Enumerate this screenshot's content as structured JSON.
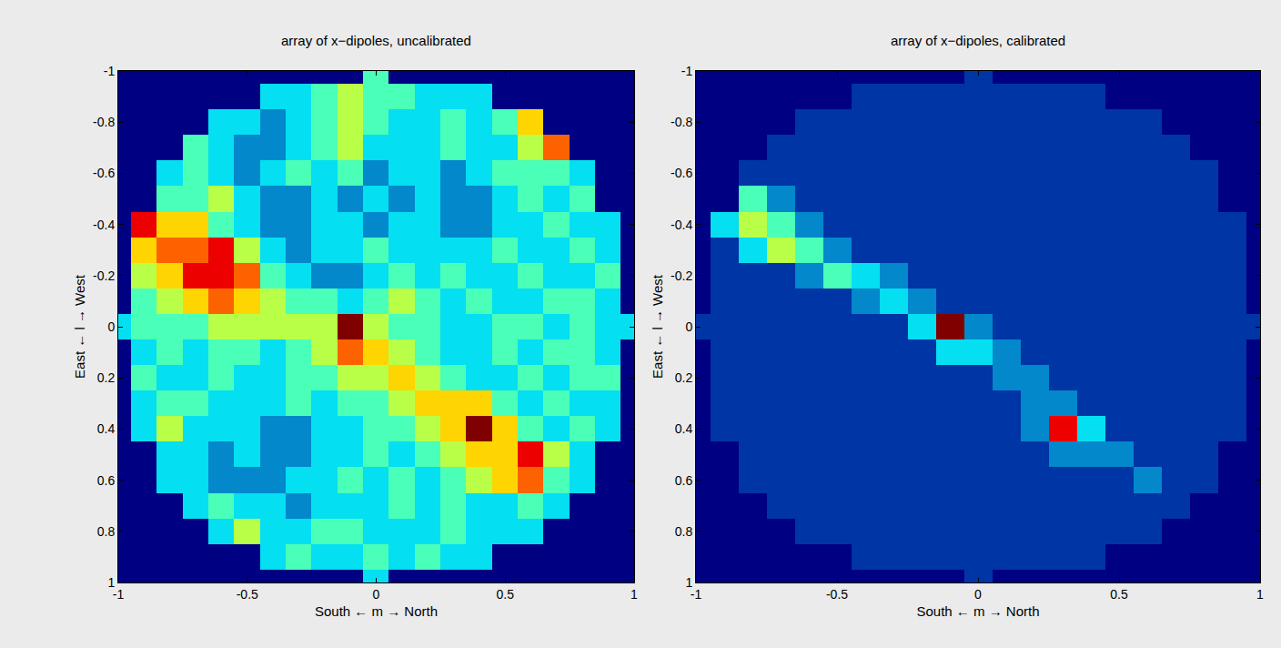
{
  "chart_data": [
    {
      "type": "heatmap",
      "title": "array of x−dipoles, uncalibrated",
      "x_label": "South ← m → North",
      "y_label": "East ← l → West",
      "xlim": [
        -1,
        1
      ],
      "ylim": [
        1,
        -1
      ],
      "xticks": [
        -1,
        -0.5,
        0,
        0.5,
        1
      ],
      "yticks": [
        -1,
        -0.8,
        -0.6,
        -0.4,
        -0.2,
        0,
        0.2,
        0.4,
        0.6,
        0.8,
        1
      ],
      "color_range": [
        0,
        9
      ],
      "x": [
        -1,
        -0.9,
        -0.8,
        -0.7,
        -0.6,
        -0.5,
        -0.4,
        -0.3,
        -0.2,
        -0.1,
        0,
        0.1,
        0.2,
        0.3,
        0.4,
        0.5,
        0.6,
        0.7,
        0.8,
        0.9,
        1
      ],
      "y": [
        -1,
        -0.9,
        -0.8,
        -0.7,
        -0.6,
        -0.5,
        -0.4,
        -0.3,
        -0.2,
        -0.1,
        0,
        0.1,
        0.2,
        0.3,
        0.4,
        0.5,
        0.6,
        0.7,
        0.8,
        0.9,
        1
      ],
      "z": [
        [
          null,
          null,
          null,
          null,
          null,
          null,
          null,
          null,
          null,
          null,
          4,
          null,
          null,
          null,
          null,
          null,
          null,
          null,
          null,
          null,
          null
        ],
        [
          null,
          null,
          null,
          null,
          null,
          null,
          3,
          3,
          4,
          5,
          4,
          4,
          3,
          3,
          3,
          null,
          null,
          null,
          null,
          null,
          null
        ],
        [
          null,
          null,
          null,
          null,
          3,
          3,
          2,
          3,
          4,
          5,
          4,
          3,
          3,
          4,
          3,
          4,
          6,
          null,
          null,
          null,
          null
        ],
        [
          null,
          null,
          null,
          4,
          3,
          2,
          2,
          3,
          4,
          5,
          3,
          3,
          3,
          4,
          3,
          3,
          5,
          7,
          null,
          null,
          null
        ],
        [
          null,
          null,
          3,
          4,
          3,
          2,
          3,
          4,
          3,
          4,
          2,
          3,
          3,
          2,
          3,
          4,
          4,
          4,
          3,
          null,
          null
        ],
        [
          null,
          null,
          4,
          4,
          5,
          3,
          2,
          2,
          3,
          2,
          3,
          2,
          3,
          2,
          2,
          3,
          4,
          3,
          4,
          null,
          null
        ],
        [
          null,
          8,
          6,
          6,
          4,
          3,
          2,
          2,
          3,
          3,
          2,
          3,
          3,
          2,
          2,
          3,
          3,
          4,
          3,
          3,
          null
        ],
        [
          null,
          6,
          7,
          7,
          8,
          5,
          3,
          2,
          3,
          3,
          4,
          3,
          3,
          3,
          3,
          4,
          3,
          3,
          4,
          3,
          null
        ],
        [
          null,
          5,
          6,
          8,
          8,
          7,
          4,
          3,
          2,
          2,
          3,
          4,
          3,
          4,
          3,
          3,
          4,
          3,
          3,
          4,
          null
        ],
        [
          null,
          4,
          5,
          6,
          7,
          6,
          5,
          4,
          4,
          3,
          4,
          5,
          4,
          3,
          4,
          3,
          3,
          4,
          4,
          3,
          null
        ],
        [
          3,
          4,
          4,
          4,
          5,
          5,
          5,
          5,
          5,
          9,
          5,
          4,
          4,
          3,
          3,
          4,
          4,
          3,
          4,
          3,
          3
        ],
        [
          null,
          3,
          4,
          3,
          4,
          4,
          3,
          4,
          5,
          7,
          6,
          5,
          4,
          3,
          3,
          4,
          3,
          4,
          4,
          3,
          null
        ],
        [
          null,
          4,
          3,
          3,
          4,
          3,
          3,
          4,
          4,
          5,
          5,
          6,
          5,
          4,
          3,
          3,
          4,
          3,
          4,
          4,
          null
        ],
        [
          null,
          3,
          4,
          4,
          3,
          3,
          3,
          4,
          3,
          4,
          4,
          5,
          6,
          6,
          6,
          4,
          3,
          4,
          3,
          3,
          null
        ],
        [
          null,
          3,
          5,
          3,
          3,
          3,
          2,
          2,
          3,
          3,
          4,
          4,
          5,
          6,
          9,
          6,
          4,
          3,
          4,
          3,
          null
        ],
        [
          null,
          null,
          3,
          3,
          2,
          3,
          2,
          2,
          3,
          3,
          4,
          3,
          4,
          5,
          6,
          6,
          8,
          5,
          3,
          null,
          null
        ],
        [
          null,
          null,
          3,
          3,
          2,
          2,
          2,
          3,
          3,
          4,
          3,
          4,
          3,
          4,
          5,
          6,
          7,
          4,
          3,
          null,
          null
        ],
        [
          null,
          null,
          null,
          3,
          4,
          3,
          3,
          2,
          3,
          3,
          3,
          4,
          3,
          4,
          3,
          3,
          4,
          3,
          null,
          null,
          null
        ],
        [
          null,
          null,
          null,
          null,
          3,
          5,
          3,
          3,
          4,
          4,
          3,
          3,
          3,
          4,
          3,
          3,
          3,
          null,
          null,
          null,
          null
        ],
        [
          null,
          null,
          null,
          null,
          null,
          null,
          3,
          4,
          3,
          3,
          4,
          3,
          4,
          3,
          3,
          null,
          null,
          null,
          null,
          null,
          null
        ],
        [
          null,
          null,
          null,
          null,
          null,
          null,
          null,
          null,
          null,
          null,
          3,
          null,
          null,
          null,
          null,
          null,
          null,
          null,
          null,
          null,
          null
        ]
      ]
    },
    {
      "type": "heatmap",
      "title": "array of x−dipoles, calibrated",
      "x_label": "South ← m → North",
      "y_label": "East ← l → West",
      "xlim": [
        -1,
        1
      ],
      "ylim": [
        1,
        -1
      ],
      "xticks": [
        -1,
        -0.5,
        0,
        0.5,
        1
      ],
      "yticks": [
        -1,
        -0.8,
        -0.6,
        -0.4,
        -0.2,
        0,
        0.2,
        0.4,
        0.6,
        0.8,
        1
      ],
      "color_range": [
        0,
        9
      ],
      "x": [
        -1,
        -0.9,
        -0.8,
        -0.7,
        -0.6,
        -0.5,
        -0.4,
        -0.3,
        -0.2,
        -0.1,
        0,
        0.1,
        0.2,
        0.3,
        0.4,
        0.5,
        0.6,
        0.7,
        0.8,
        0.9,
        1
      ],
      "y": [
        -1,
        -0.9,
        -0.8,
        -0.7,
        -0.6,
        -0.5,
        -0.4,
        -0.3,
        -0.2,
        -0.1,
        0,
        0.1,
        0.2,
        0.3,
        0.4,
        0.5,
        0.6,
        0.7,
        0.8,
        0.9,
        1
      ],
      "z": [
        [
          null,
          null,
          null,
          null,
          null,
          null,
          null,
          null,
          null,
          null,
          1,
          null,
          null,
          null,
          null,
          null,
          null,
          null,
          null,
          null,
          null
        ],
        [
          null,
          null,
          null,
          null,
          null,
          null,
          1,
          1,
          1,
          1,
          1,
          1,
          1,
          1,
          1,
          null,
          null,
          null,
          null,
          null,
          null
        ],
        [
          null,
          null,
          null,
          null,
          1,
          1,
          1,
          1,
          1,
          1,
          1,
          1,
          1,
          1,
          1,
          1,
          1,
          null,
          null,
          null,
          null
        ],
        [
          null,
          null,
          null,
          1,
          1,
          1,
          1,
          1,
          1,
          1,
          1,
          1,
          1,
          1,
          1,
          1,
          1,
          1,
          null,
          null,
          null
        ],
        [
          null,
          null,
          1,
          1,
          1,
          1,
          1,
          1,
          1,
          1,
          1,
          1,
          1,
          1,
          1,
          1,
          1,
          1,
          1,
          null,
          null
        ],
        [
          null,
          null,
          4,
          2,
          1,
          1,
          1,
          1,
          1,
          1,
          1,
          1,
          1,
          1,
          1,
          1,
          1,
          1,
          1,
          null,
          null
        ],
        [
          null,
          3,
          5,
          4,
          2,
          1,
          1,
          1,
          1,
          1,
          1,
          1,
          1,
          1,
          1,
          1,
          1,
          1,
          1,
          1,
          null
        ],
        [
          null,
          1,
          3,
          5,
          4,
          2,
          1,
          1,
          1,
          1,
          1,
          1,
          1,
          1,
          1,
          1,
          1,
          1,
          1,
          1,
          null
        ],
        [
          null,
          1,
          1,
          1,
          2,
          4,
          3,
          2,
          1,
          1,
          1,
          1,
          1,
          1,
          1,
          1,
          1,
          1,
          1,
          1,
          null
        ],
        [
          null,
          1,
          1,
          1,
          1,
          1,
          2,
          3,
          2,
          1,
          1,
          1,
          1,
          1,
          1,
          1,
          1,
          1,
          1,
          1,
          null
        ],
        [
          1,
          1,
          1,
          1,
          1,
          1,
          1,
          1,
          3,
          9,
          2,
          1,
          1,
          1,
          1,
          1,
          1,
          1,
          1,
          1,
          1
        ],
        [
          null,
          1,
          1,
          1,
          1,
          1,
          1,
          1,
          1,
          3,
          3,
          2,
          1,
          1,
          1,
          1,
          1,
          1,
          1,
          1,
          null
        ],
        [
          null,
          1,
          1,
          1,
          1,
          1,
          1,
          1,
          1,
          1,
          1,
          2,
          2,
          1,
          1,
          1,
          1,
          1,
          1,
          1,
          null
        ],
        [
          null,
          1,
          1,
          1,
          1,
          1,
          1,
          1,
          1,
          1,
          1,
          1,
          2,
          2,
          1,
          1,
          1,
          1,
          1,
          1,
          null
        ],
        [
          null,
          1,
          1,
          1,
          1,
          1,
          1,
          1,
          1,
          1,
          1,
          1,
          2,
          8,
          3,
          1,
          1,
          1,
          1,
          1,
          null
        ],
        [
          null,
          null,
          1,
          1,
          1,
          1,
          1,
          1,
          1,
          1,
          1,
          1,
          1,
          2,
          2,
          2,
          1,
          1,
          1,
          null,
          null
        ],
        [
          null,
          null,
          1,
          1,
          1,
          1,
          1,
          1,
          1,
          1,
          1,
          1,
          1,
          1,
          1,
          1,
          2,
          1,
          1,
          null,
          null
        ],
        [
          null,
          null,
          null,
          1,
          1,
          1,
          1,
          1,
          1,
          1,
          1,
          1,
          1,
          1,
          1,
          1,
          1,
          1,
          null,
          null,
          null
        ],
        [
          null,
          null,
          null,
          null,
          1,
          1,
          1,
          1,
          1,
          1,
          1,
          1,
          1,
          1,
          1,
          1,
          1,
          null,
          null,
          null,
          null
        ],
        [
          null,
          null,
          null,
          null,
          null,
          null,
          1,
          1,
          1,
          1,
          1,
          1,
          1,
          1,
          1,
          null,
          null,
          null,
          null,
          null,
          null
        ],
        [
          null,
          null,
          null,
          null,
          null,
          null,
          null,
          null,
          null,
          null,
          1,
          null,
          null,
          null,
          null,
          null,
          null,
          null,
          null,
          null,
          null
        ]
      ]
    }
  ]
}
